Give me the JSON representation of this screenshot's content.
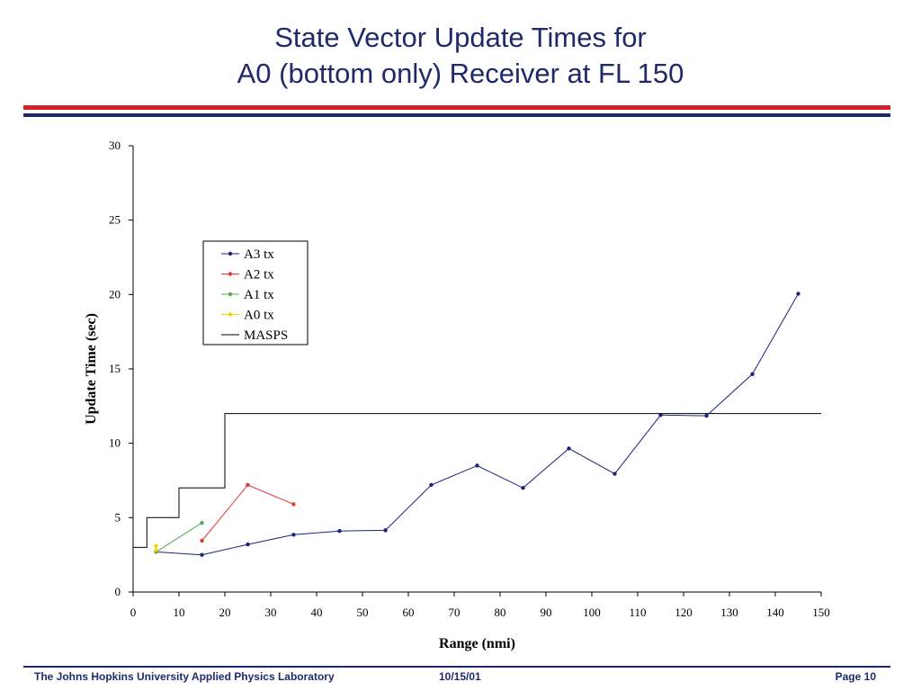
{
  "slide": {
    "title_line1": "State Vector Update Times for",
    "title_line2": "A0 (bottom only) Receiver at FL 150"
  },
  "footer": {
    "organization": "The Johns Hopkins University Applied Physics Laboratory",
    "date": "10/15/01",
    "page": "Page 10"
  },
  "colors": {
    "title": "#1f2a6b",
    "rule_red": "#d3202a",
    "rule_navy": "#1f2a6b"
  },
  "chart_data": {
    "type": "line",
    "title": "",
    "xlabel": "Range (nmi)",
    "ylabel": "Update Time (sec)",
    "xlim": [
      0,
      150
    ],
    "ylim": [
      0,
      30
    ],
    "xticks": [
      0,
      10,
      20,
      30,
      40,
      50,
      60,
      70,
      80,
      90,
      100,
      110,
      120,
      130,
      140,
      150
    ],
    "yticks": [
      0,
      5,
      10,
      15,
      20,
      25,
      30
    ],
    "grid": false,
    "legend_position": "upper-left-inside",
    "series": [
      {
        "name": "A3 tx",
        "color": "#1a237e",
        "markers": true,
        "x": [
          5,
          15,
          25,
          35,
          45,
          55,
          65,
          75,
          85,
          95,
          105,
          115,
          125,
          135,
          145
        ],
        "y": [
          2.7,
          2.5,
          3.2,
          3.85,
          4.1,
          4.15,
          7.2,
          8.5,
          7.0,
          9.65,
          7.95,
          11.9,
          11.85,
          14.65,
          20.05
        ]
      },
      {
        "name": "A2 tx",
        "color": "#e53935",
        "markers": true,
        "x": [
          15,
          25,
          35
        ],
        "y": [
          3.45,
          7.2,
          5.9
        ]
      },
      {
        "name": "A1 tx",
        "color": "#4caf50",
        "markers": true,
        "x": [
          5,
          15
        ],
        "y": [
          2.7,
          4.65
        ]
      },
      {
        "name": "A0 tx",
        "color": "#f4d000",
        "markers": true,
        "x": [
          5,
          5
        ],
        "y": [
          2.8,
          3.1
        ]
      },
      {
        "name": "MASPS",
        "color": "#000000",
        "markers": false,
        "step": true,
        "x": [
          0,
          3,
          3,
          10,
          10,
          20,
          20,
          150
        ],
        "y": [
          3,
          3,
          5,
          5,
          7,
          7,
          12,
          12
        ]
      }
    ]
  }
}
